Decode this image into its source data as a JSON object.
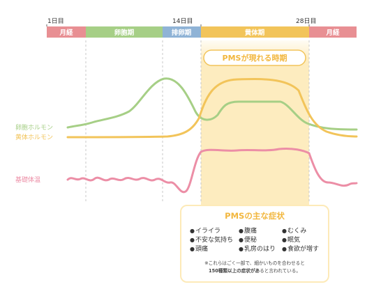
{
  "day_labels": {
    "start": "1日目",
    "mid": "14日目",
    "end": "28日目"
  },
  "phases": [
    {
      "label": "月経",
      "color": "#e88f93"
    },
    {
      "label": "卵胞期",
      "color": "#a6cf86"
    },
    {
      "label": "排卵期",
      "color": "#8fb3d6"
    },
    {
      "label": "黄体期",
      "color": "#f2c45a"
    },
    {
      "label": "月経",
      "color": "#e88f93"
    }
  ],
  "pms_label": "PMSが現れる時期",
  "series": [
    {
      "name": "卵胞ホルモン",
      "color": "#a6cf86"
    },
    {
      "name": "黄体ホルモン",
      "color": "#f2c45a"
    },
    {
      "name": "基礎体温",
      "color": "#ec8ea6"
    }
  ],
  "symptoms": {
    "title": "PMSの主な症状",
    "columns": [
      [
        "イライラ",
        "不安な気持ち",
        "頭痛"
      ],
      [
        "腹痛",
        "便秘",
        "乳房のはり"
      ],
      [
        "むくみ",
        "眠気",
        "食欲が増す"
      ]
    ],
    "note_line1": "※これらはごく一部で、細かいものを合わせると",
    "note_line2_bold1": "150種類以上の症状があ",
    "note_line2_rest": "ると言われている。"
  },
  "colors": {
    "pms_band": "#fdeab8",
    "pms_label_border": "#f2c45a",
    "dashed_line": "#c8c8c8"
  }
}
